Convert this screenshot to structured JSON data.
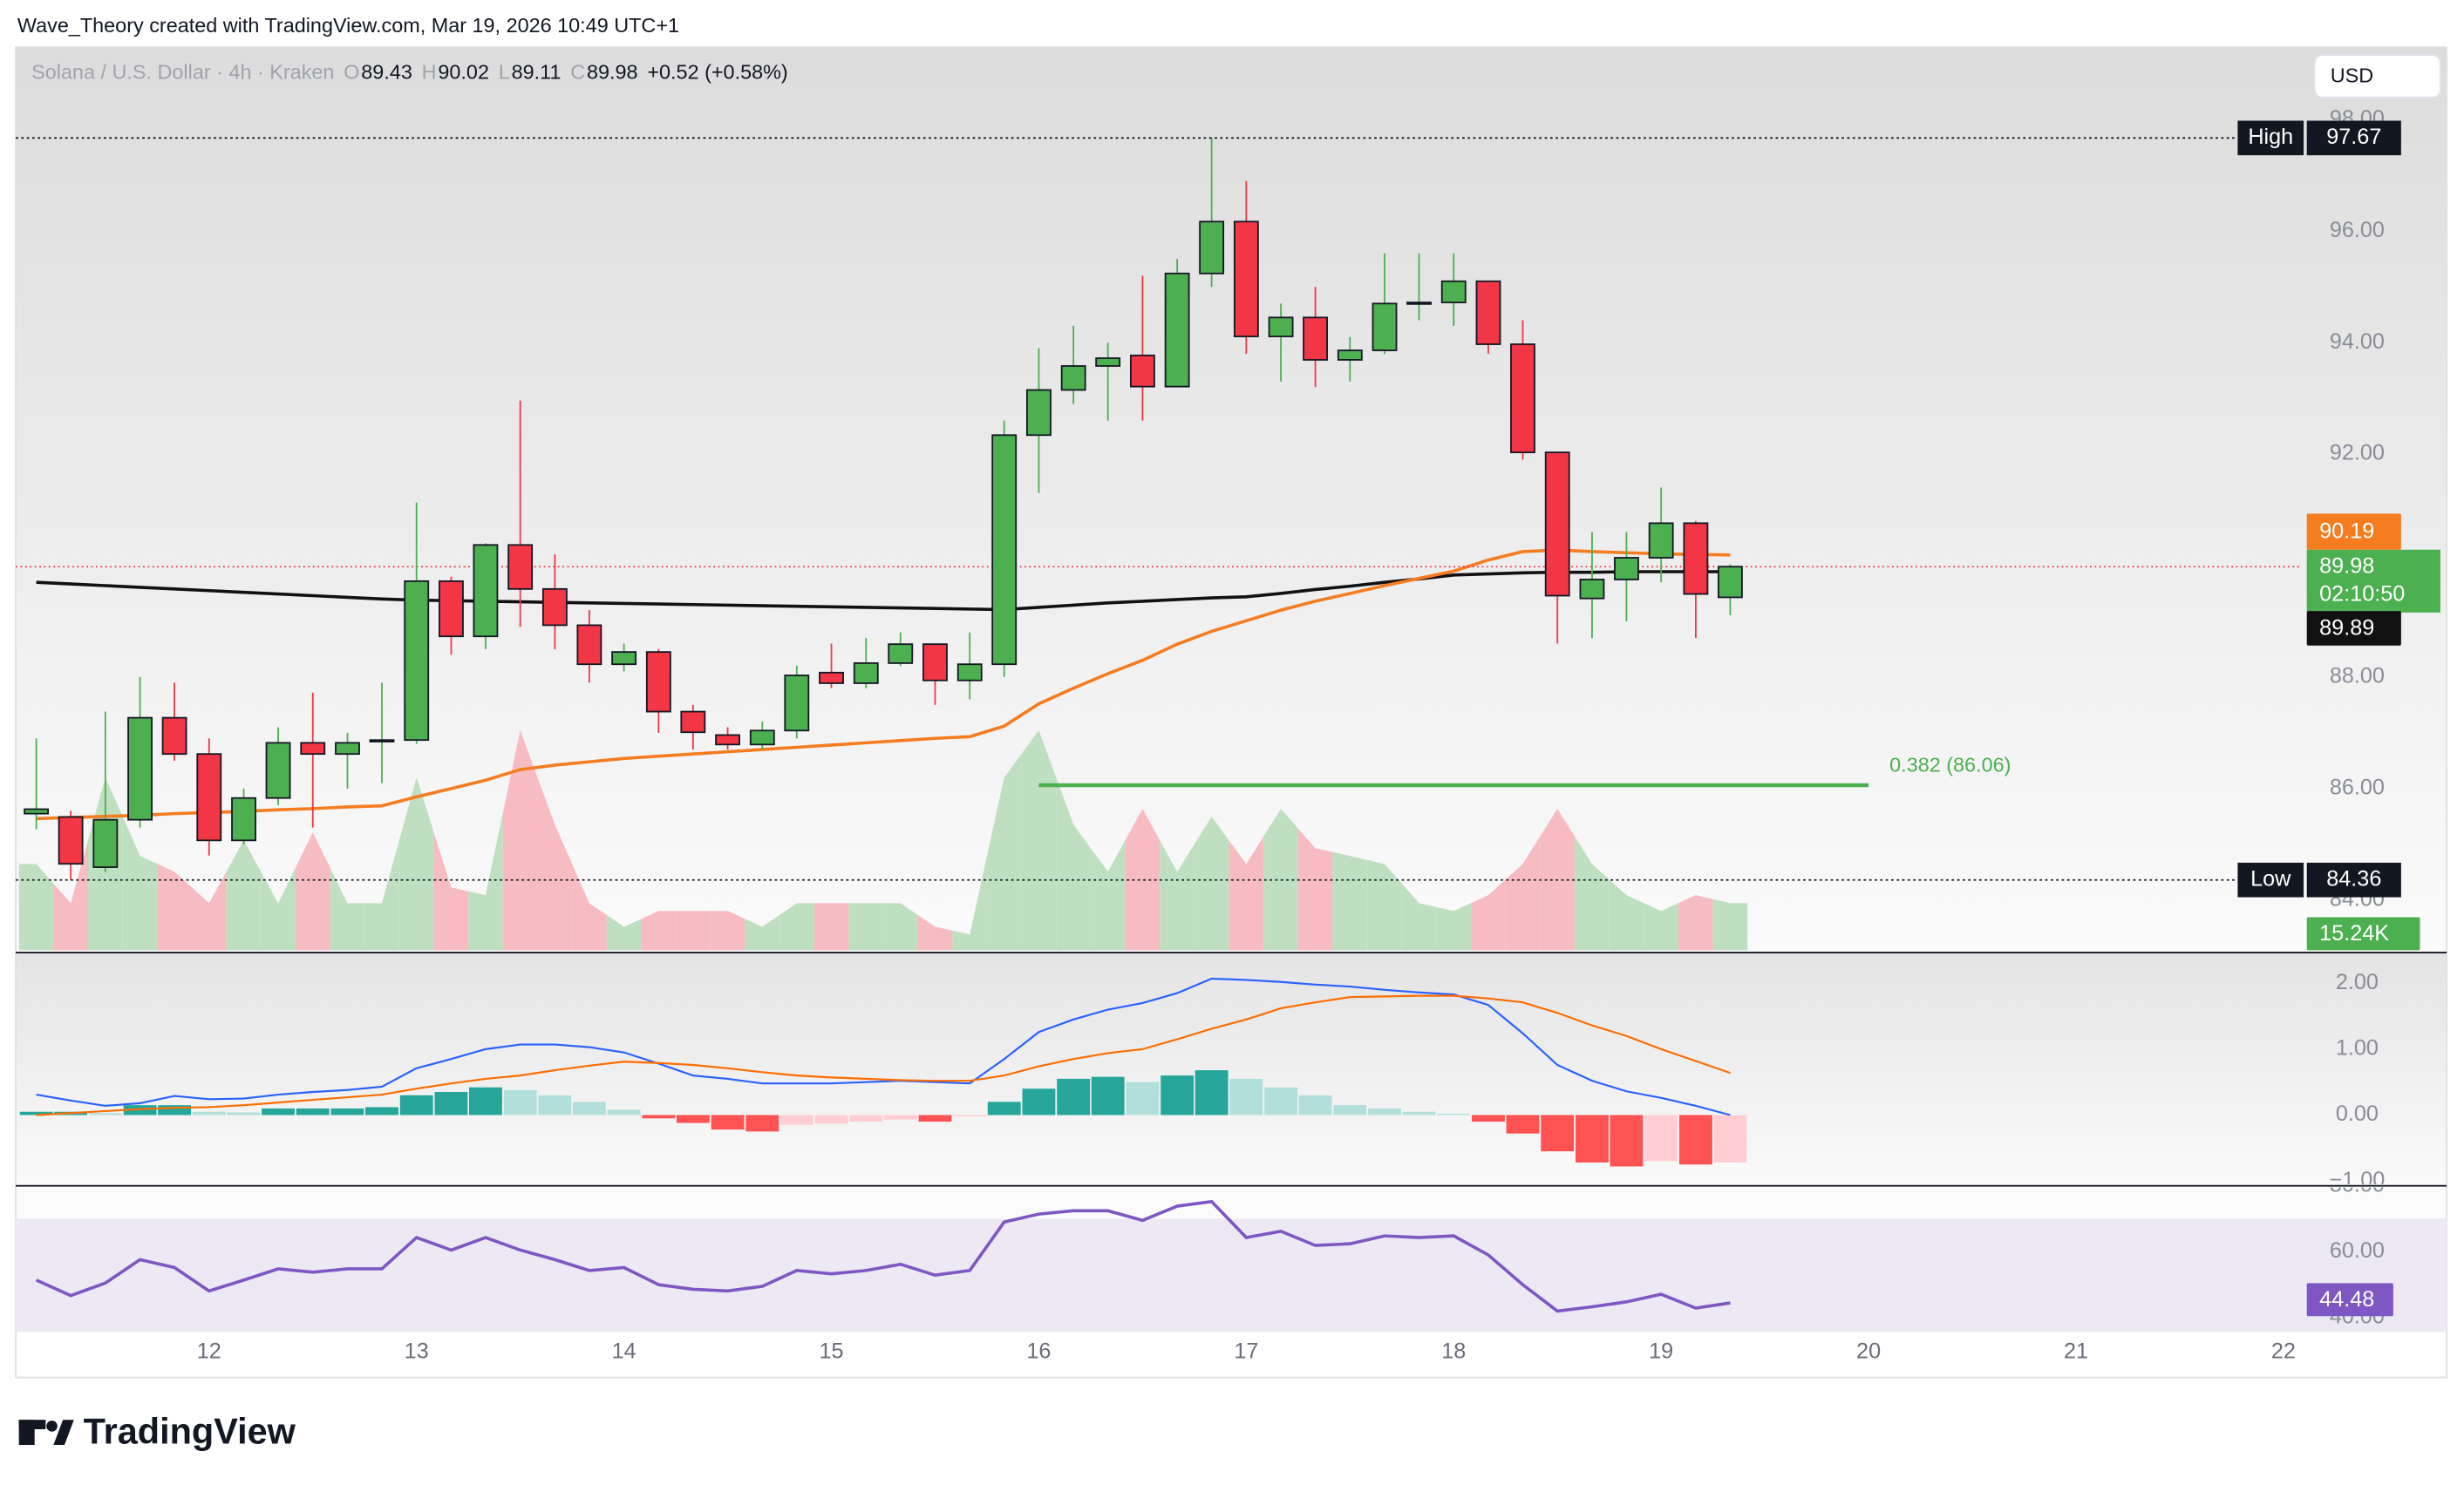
{
  "header": {
    "attribution": "Wave_Theory created with TradingView.com, Mar 19, 2026 10:49 UTC+1",
    "symbol": "Solana / U.S. Dollar · 4h · Kraken",
    "ohlc_letters": [
      "O",
      "H",
      "L",
      "C"
    ],
    "change": "+0.52 (+0.58%)",
    "currency": "USD"
  },
  "footer": {
    "logo": "TradingView"
  },
  "chart_data": [
    {
      "type": "candlestick",
      "x": [
        11.167,
        11.333,
        11.5,
        11.667,
        11.833,
        12,
        12.167,
        12.333,
        12.5,
        12.667,
        12.833,
        13,
        13.167,
        13.333,
        13.5,
        13.667,
        13.833,
        14,
        14.167,
        14.333,
        14.5,
        14.667,
        14.833,
        15,
        15.167,
        15.333,
        15.5,
        15.667,
        15.833,
        16,
        16.167,
        16.333,
        16.5,
        16.667,
        16.833,
        17,
        17.167,
        17.333,
        17.5,
        17.667,
        17.833,
        18,
        18.167,
        18.333,
        18.5,
        18.667,
        18.833,
        19,
        19.167,
        19.333
      ],
      "open": [
        85.55,
        85.49,
        84.59,
        85.44,
        87.27,
        86.62,
        85.07,
        85.83,
        86.82,
        86.62,
        86.85,
        86.87,
        89.72,
        88.73,
        90.37,
        89.58,
        88.93,
        88.23,
        88.45,
        87.38,
        86.96,
        86.79,
        87.04,
        88.08,
        87.89,
        88.25,
        88.59,
        87.94,
        88.23,
        92.34,
        93.15,
        93.58,
        93.77,
        93.21,
        95.24,
        96.17,
        94.11,
        94.45,
        93.69,
        93.86,
        94.7,
        94.72,
        95.1,
        93.97,
        92.03,
        89.41,
        89.75,
        90.14,
        90.76,
        89.43
      ],
      "high": [
        86.9,
        85.6,
        87.38,
        88.0,
        87.9,
        86.9,
        86.0,
        87.1,
        87.72,
        87.0,
        87.9,
        91.13,
        89.8,
        90.4,
        92.96,
        90.2,
        89.2,
        88.6,
        88.5,
        87.5,
        87.1,
        87.2,
        88.2,
        88.6,
        88.7,
        88.8,
        88.6,
        88.8,
        92.6,
        93.9,
        94.3,
        94.0,
        95.2,
        95.5,
        97.67,
        96.9,
        94.7,
        95.0,
        94.1,
        95.6,
        95.6,
        95.6,
        95.1,
        94.4,
        92.03,
        90.6,
        90.6,
        91.4,
        90.8,
        90.02
      ],
      "low": [
        85.27,
        84.36,
        84.5,
        85.3,
        86.5,
        84.8,
        85.0,
        85.7,
        85.3,
        86.0,
        86.1,
        86.8,
        88.4,
        88.5,
        88.9,
        88.5,
        87.9,
        88.1,
        87.0,
        86.7,
        86.7,
        86.7,
        86.9,
        87.8,
        87.8,
        88.2,
        87.5,
        87.6,
        88.0,
        91.3,
        92.9,
        92.6,
        92.6,
        93.2,
        95.0,
        93.8,
        93.3,
        93.2,
        93.3,
        93.8,
        94.4,
        94.3,
        93.8,
        91.9,
        88.6,
        88.7,
        89.0,
        89.7,
        88.7,
        89.11
      ],
      "close": [
        85.63,
        84.65,
        85.44,
        87.27,
        86.62,
        85.07,
        85.83,
        86.82,
        86.62,
        86.82,
        86.87,
        89.72,
        88.73,
        90.37,
        89.58,
        88.93,
        88.23,
        88.45,
        87.38,
        87.01,
        86.79,
        87.04,
        88.03,
        87.89,
        88.25,
        88.59,
        87.94,
        88.23,
        92.34,
        93.15,
        93.58,
        93.72,
        93.21,
        95.24,
        96.17,
        94.11,
        94.45,
        93.69,
        93.86,
        94.7,
        94.72,
        95.1,
        93.97,
        92.03,
        89.46,
        89.75,
        90.14,
        90.76,
        89.49,
        89.98
      ],
      "up_color": "#4caf50",
      "down_color": "#f23645",
      "xlim": [
        11.068,
        22.09
      ],
      "xticks": [
        12,
        13,
        14,
        15,
        16,
        17,
        18,
        19,
        20,
        21,
        22
      ],
      "ylim": [
        83.1,
        99.3
      ],
      "yticks": [
        {
          "value": 84,
          "label": "84.00"
        },
        {
          "value": 86,
          "label": "86.00"
        },
        {
          "value": 88,
          "label": "88.00"
        },
        {
          "value": 92,
          "label": "92.00"
        },
        {
          "value": 94,
          "label": "94.00"
        },
        {
          "value": 96,
          "label": "96.00"
        },
        {
          "value": 98,
          "label": "98.00"
        }
      ],
      "lines": [
        {
          "color": "#111111",
          "values": [
            89.7,
            89.67,
            89.64,
            89.61,
            89.58,
            89.55,
            89.52,
            89.49,
            89.46,
            89.43,
            89.4,
            89.38,
            89.37,
            89.36,
            89.35,
            89.34,
            89.33,
            89.32,
            89.31,
            89.3,
            89.29,
            89.28,
            89.27,
            89.26,
            89.25,
            89.24,
            89.23,
            89.22,
            89.21,
            89.25,
            89.29,
            89.33,
            89.36,
            89.39,
            89.42,
            89.44,
            89.5,
            89.57,
            89.63,
            89.7,
            89.76,
            89.83,
            89.85,
            89.87,
            89.88,
            89.88,
            89.89,
            89.89,
            89.89,
            89.89
          ]
        },
        {
          "color": "#f57c1f",
          "values": [
            85.46,
            85.48,
            85.5,
            85.52,
            85.55,
            85.57,
            85.59,
            85.62,
            85.64,
            85.67,
            85.69,
            85.85,
            86.0,
            86.15,
            86.34,
            86.42,
            86.48,
            86.54,
            86.58,
            86.62,
            86.66,
            86.7,
            86.74,
            86.78,
            86.82,
            86.86,
            86.9,
            86.93,
            87.12,
            87.52,
            87.8,
            88.06,
            88.3,
            88.59,
            88.82,
            89.01,
            89.2,
            89.36,
            89.5,
            89.64,
            89.77,
            89.9,
            90.1,
            90.25,
            90.28,
            90.25,
            90.23,
            90.21,
            90.2,
            90.19
          ]
        }
      ],
      "volume": {
        "values": [
          27900,
          15200,
          55900,
          30500,
          25400,
          15200,
          35600,
          15200,
          38100,
          15200,
          15200,
          55900,
          20300,
          17800,
          71100,
          40600,
          15200,
          7600,
          12700,
          12700,
          12700,
          7600,
          15200,
          15200,
          15200,
          15200,
          7600,
          5100,
          55900,
          71100,
          40600,
          25400,
          45700,
          25400,
          43200,
          27900,
          45700,
          33000,
          30500,
          27900,
          15200,
          12700,
          17800,
          27900,
          45700,
          27900,
          17800,
          12700,
          17800,
          15240
        ],
        "value_labels": [
          null,
          null,
          null,
          null,
          null,
          null,
          null,
          null,
          null,
          null,
          null,
          null,
          null,
          null,
          null,
          null,
          null,
          null,
          null,
          null,
          null,
          null,
          null,
          null,
          null,
          null,
          null,
          null,
          null,
          null,
          null,
          null,
          null,
          null,
          null,
          null,
          null,
          null,
          null,
          null,
          null,
          null,
          null,
          null,
          null,
          null,
          null,
          null,
          null,
          "15.24K"
        ],
        "up_color": "#bfe0c0",
        "down_color": "#f7bcc2"
      },
      "high_label": "High",
      "low_label": "Low",
      "countdown": "02:10:50",
      "fib": {
        "label": "0.382 (86.06)",
        "value": 86.06,
        "x": [
          16,
          20
        ],
        "color": "#4caf50"
      }
    },
    {
      "type": "macd",
      "ylim": [
        -1.05,
        2.43
      ],
      "yticks": [
        {
          "value": -1,
          "label": "−1.00"
        },
        {
          "value": 0,
          "label": "0.00"
        },
        {
          "value": 1,
          "label": "1.00"
        },
        {
          "value": 2,
          "label": "2.00"
        }
      ],
      "series": [
        {
          "color": "#2962ff",
          "values": [
            0.31,
            0.22,
            0.14,
            0.18,
            0.29,
            0.24,
            0.25,
            0.31,
            0.35,
            0.38,
            0.43,
            0.71,
            0.85,
            1.0,
            1.07,
            1.07,
            1.03,
            0.95,
            0.78,
            0.6,
            0.55,
            0.48,
            0.48,
            0.48,
            0.5,
            0.52,
            0.5,
            0.48,
            0.85,
            1.26,
            1.45,
            1.6,
            1.7,
            1.85,
            2.07,
            2.05,
            2.02,
            1.98,
            1.95,
            1.9,
            1.86,
            1.83,
            1.67,
            1.24,
            0.76,
            0.52,
            0.36,
            0.26,
            0.14,
            0.0
          ]
        },
        {
          "color": "#ff6d00",
          "values": [
            0.0,
            0.03,
            0.06,
            0.09,
            0.11,
            0.12,
            0.15,
            0.19,
            0.23,
            0.27,
            0.31,
            0.4,
            0.48,
            0.55,
            0.6,
            0.68,
            0.75,
            0.81,
            0.79,
            0.76,
            0.71,
            0.65,
            0.6,
            0.57,
            0.55,
            0.53,
            0.52,
            0.52,
            0.6,
            0.74,
            0.85,
            0.94,
            1.0,
            1.15,
            1.31,
            1.45,
            1.62,
            1.71,
            1.79,
            1.8,
            1.81,
            1.81,
            1.77,
            1.71,
            1.55,
            1.36,
            1.2,
            1.0,
            0.82,
            0.64
          ]
        }
      ],
      "histogram": {
        "values": [
          0.05,
          0.05,
          0.03,
          0.15,
          0.15,
          0.05,
          0.04,
          0.1,
          0.1,
          0.1,
          0.12,
          0.3,
          0.35,
          0.42,
          0.38,
          0.3,
          0.2,
          0.08,
          -0.05,
          -0.12,
          -0.22,
          -0.25,
          -0.15,
          -0.13,
          -0.1,
          -0.07,
          -0.1,
          -0.02,
          0.2,
          0.4,
          0.55,
          0.58,
          0.5,
          0.6,
          0.68,
          0.55,
          0.42,
          0.3,
          0.15,
          0.1,
          0.05,
          0.02,
          -0.1,
          -0.28,
          -0.55,
          -0.72,
          -0.78,
          -0.7,
          -0.75,
          -0.72
        ],
        "colors": [
          "#26a69a",
          "#b2dfdb",
          "#ff5252",
          "#ffcdd2"
        ]
      }
    },
    {
      "type": "line",
      "ylim": [
        35.7,
        79.5
      ],
      "yticks": [
        {
          "value": 40,
          "label": "40.00"
        },
        {
          "value": 60,
          "label": "60.00"
        },
        {
          "value": 80,
          "label": "80.00"
        }
      ],
      "band": [
        30,
        70
      ],
      "band_color": "#ece8f4",
      "series": [
        {
          "color": "#7e57c2",
          "values": [
            51.4,
            46.7,
            50.5,
            57.6,
            55.2,
            48.1,
            51.4,
            54.8,
            53.8,
            54.8,
            54.8,
            64.3,
            60.5,
            64.3,
            60.5,
            57.6,
            54.3,
            55.2,
            50.0,
            48.6,
            48.1,
            49.5,
            54.3,
            53.3,
            54.3,
            56.2,
            52.9,
            54.3,
            69.0,
            71.4,
            72.4,
            72.4,
            69.5,
            73.8,
            75.2,
            64.3,
            66.2,
            61.9,
            62.4,
            64.8,
            64.3,
            64.8,
            59.0,
            50.0,
            42.0,
            43.3,
            44.8,
            47.1,
            42.9,
            44.48
          ]
        }
      ]
    }
  ]
}
